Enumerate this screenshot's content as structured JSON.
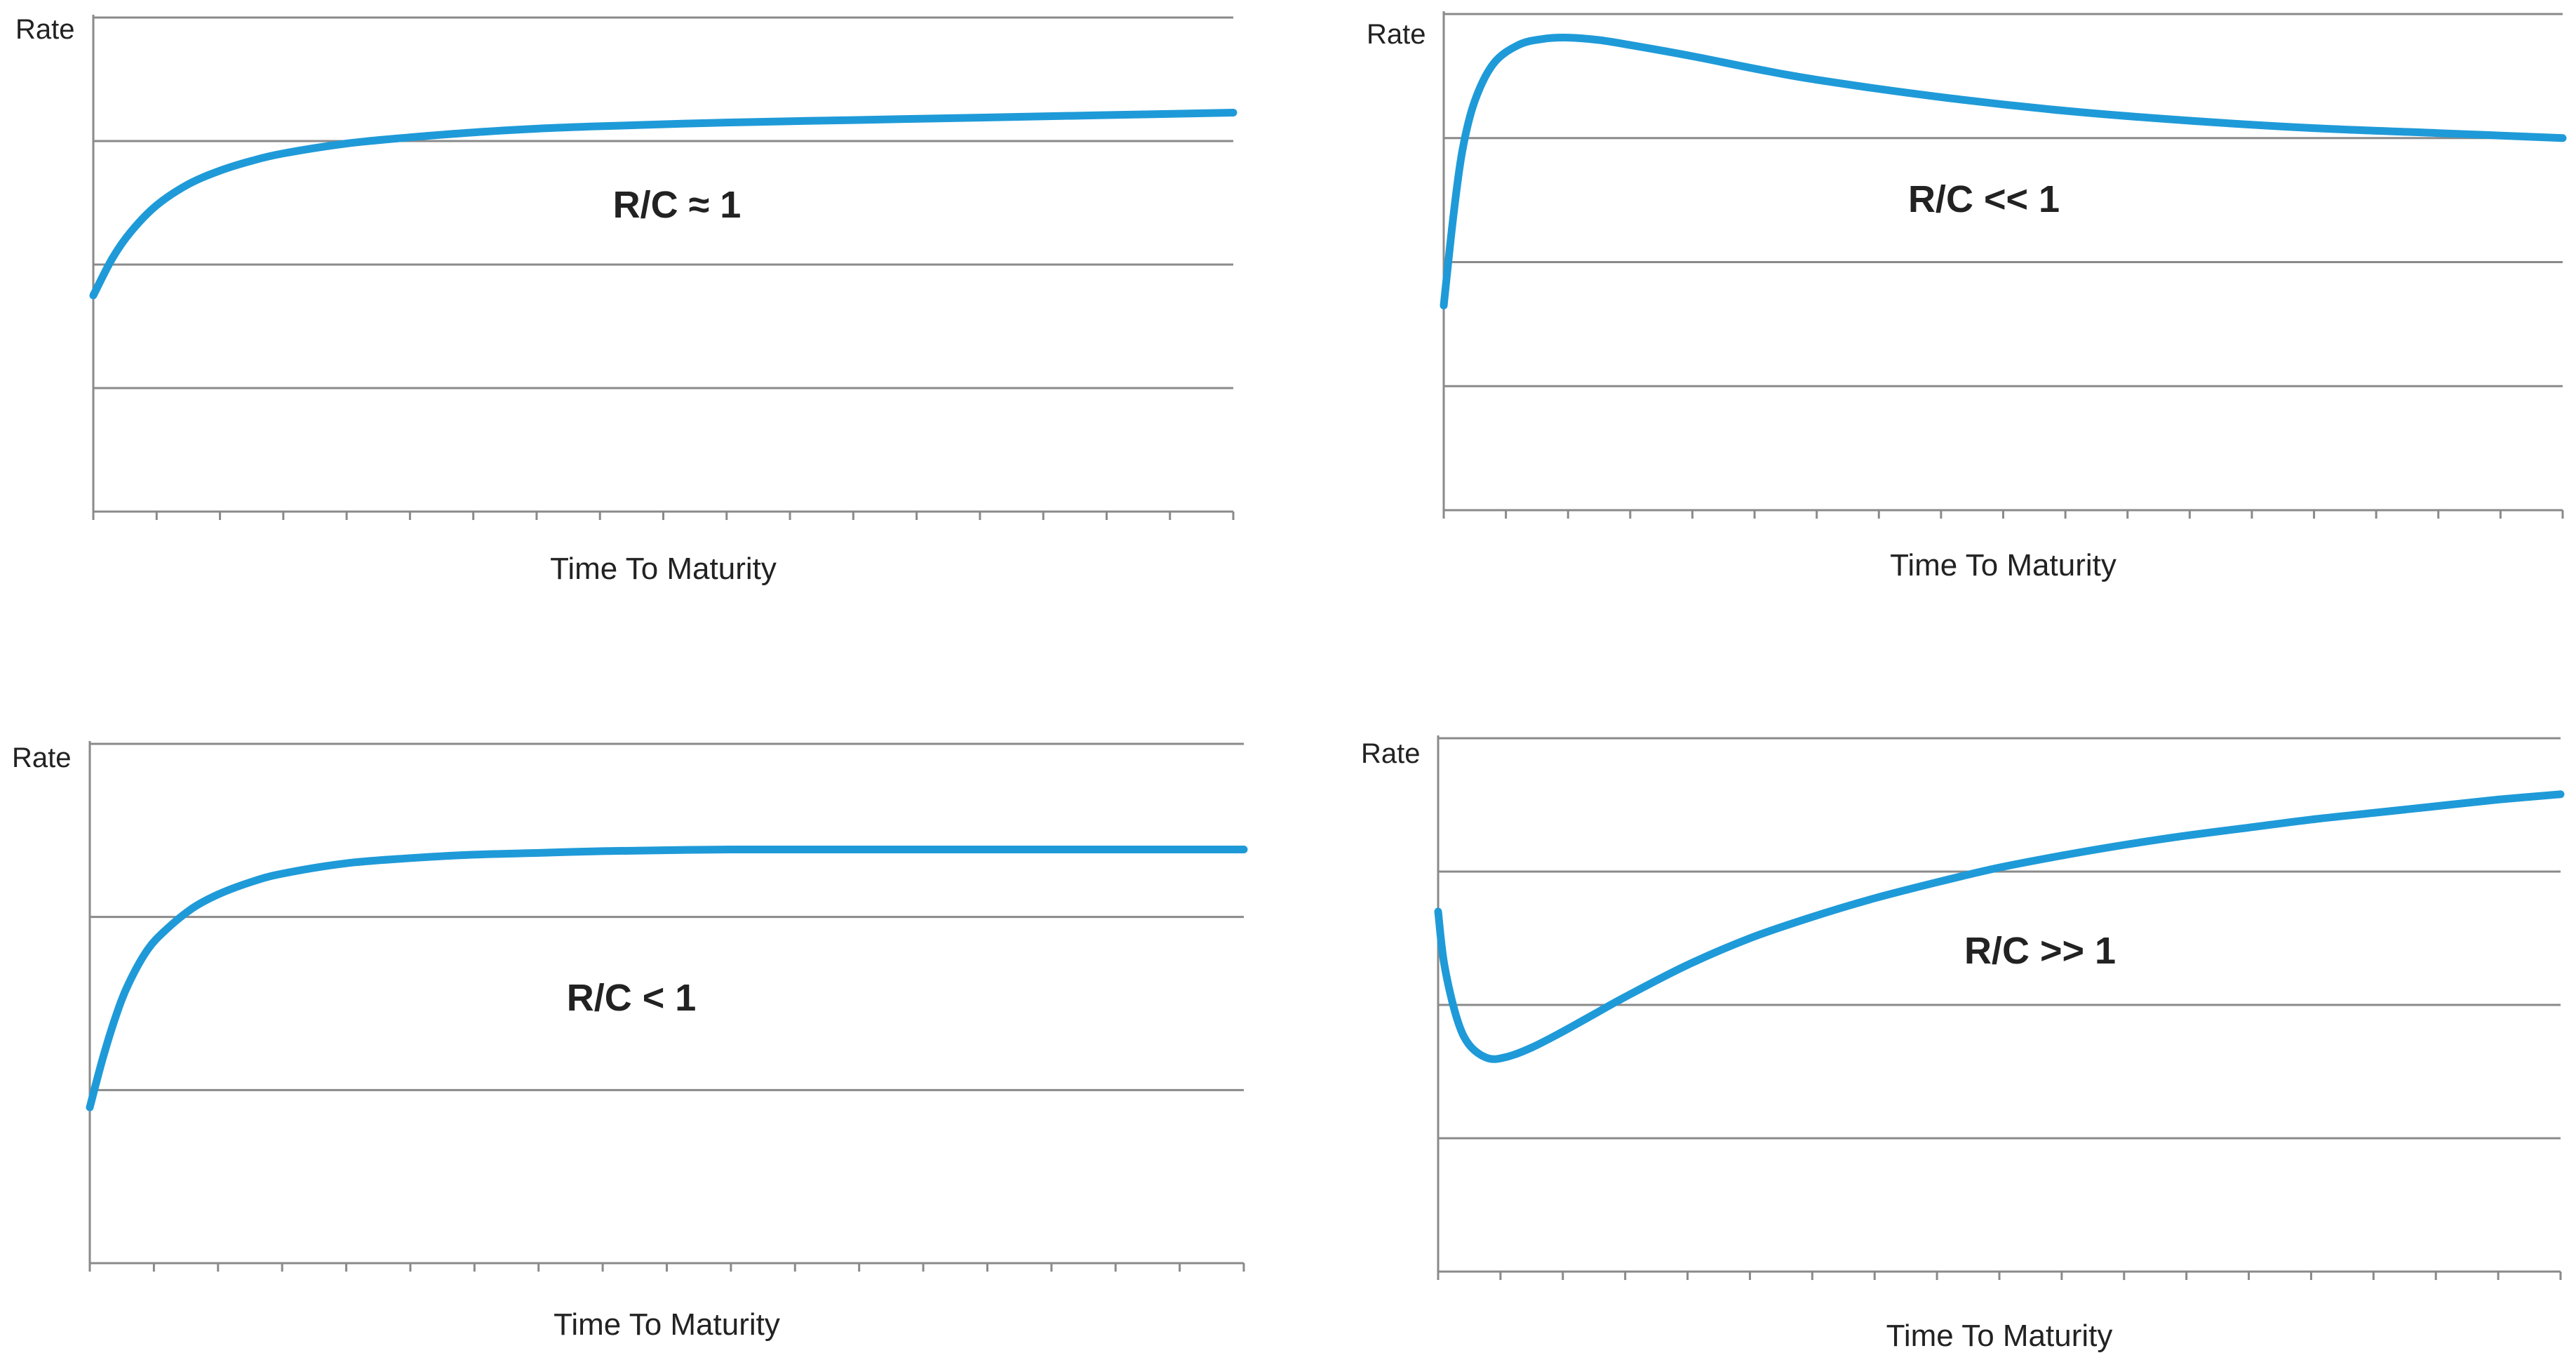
{
  "theme": {
    "line_color": "#1f9ad8",
    "grid_color": "#8a8a8a",
    "text_color": "#222222"
  },
  "chart_data": [
    {
      "type": "line",
      "position": "top-left",
      "title": "",
      "annotation": "R/C ≈ 1",
      "xlabel": "Time To Maturity",
      "ylabel": "Rate",
      "xlim": [
        0,
        18
      ],
      "ylim": [
        0,
        4
      ],
      "grid": "horizontal",
      "x_ticks": 18,
      "series": [
        {
          "x": [
            0,
            0.3,
            0.6,
            1.0,
            1.5,
            2.0,
            2.5,
            3.0,
            4.0,
            5.0,
            6.0,
            7.0,
            8.0,
            10.0,
            12.0,
            14.0,
            16.0,
            18.0
          ],
          "values": [
            1.75,
            2.05,
            2.27,
            2.48,
            2.65,
            2.76,
            2.84,
            2.9,
            2.98,
            3.03,
            3.07,
            3.1,
            3.12,
            3.15,
            3.17,
            3.19,
            3.21,
            3.23
          ]
        }
      ]
    },
    {
      "type": "line",
      "position": "top-right",
      "title": "",
      "annotation": "R/C << 1",
      "xlabel": "Time To Maturity",
      "ylabel": "Rate",
      "xlim": [
        0,
        18
      ],
      "ylim": [
        0,
        4
      ],
      "grid": "horizontal",
      "x_ticks": 18,
      "series": [
        {
          "x": [
            0,
            0.15,
            0.3,
            0.5,
            0.8,
            1.2,
            1.6,
            2.0,
            2.5,
            3.0,
            4.0,
            5.0,
            6.0,
            8.0,
            10.0,
            12.0,
            14.0,
            16.0,
            18.0
          ],
          "values": [
            1.65,
            2.35,
            2.9,
            3.3,
            3.6,
            3.75,
            3.8,
            3.81,
            3.79,
            3.75,
            3.66,
            3.56,
            3.47,
            3.33,
            3.22,
            3.14,
            3.08,
            3.04,
            3.0
          ]
        }
      ]
    },
    {
      "type": "line",
      "position": "bottom-left",
      "title": "",
      "annotation": "R/C < 1",
      "xlabel": "Time To Maturity",
      "ylabel": "Rate",
      "xlim": [
        0,
        18
      ],
      "ylim": [
        0,
        3
      ],
      "grid": "horizontal",
      "x_ticks": 18,
      "series": [
        {
          "x": [
            0,
            0.2,
            0.4,
            0.6,
            0.9,
            1.2,
            1.6,
            2.0,
            2.5,
            3.0,
            4.0,
            5.0,
            6.0,
            7.0,
            8.0,
            10.0,
            12.0,
            14.0,
            16.0,
            18.0
          ],
          "values": [
            0.9,
            1.18,
            1.42,
            1.61,
            1.81,
            1.93,
            2.05,
            2.13,
            2.2,
            2.25,
            2.31,
            2.34,
            2.36,
            2.37,
            2.38,
            2.39,
            2.39,
            2.39,
            2.39,
            2.39
          ]
        }
      ]
    },
    {
      "type": "line",
      "position": "bottom-right",
      "title": "",
      "annotation": "R/C >> 1",
      "xlabel": "Time To Maturity",
      "ylabel": "Rate",
      "xlim": [
        0,
        18
      ],
      "ylim": [
        0,
        4
      ],
      "grid": "horizontal",
      "x_ticks": 18,
      "series": [
        {
          "x": [
            0,
            0.1,
            0.3,
            0.5,
            0.8,
            1.1,
            1.5,
            2.0,
            2.5,
            3.0,
            4.0,
            5.0,
            6.0,
            7.0,
            8.0,
            9.0,
            10.0,
            11.0,
            12.0,
            13.0,
            14.0,
            15.0,
            16.0,
            17.0,
            18.0
          ],
          "values": [
            2.7,
            2.3,
            1.9,
            1.7,
            1.6,
            1.61,
            1.68,
            1.8,
            1.93,
            2.06,
            2.3,
            2.5,
            2.66,
            2.8,
            2.92,
            3.03,
            3.12,
            3.2,
            3.27,
            3.33,
            3.39,
            3.44,
            3.49,
            3.54,
            3.58
          ]
        }
      ]
    }
  ]
}
